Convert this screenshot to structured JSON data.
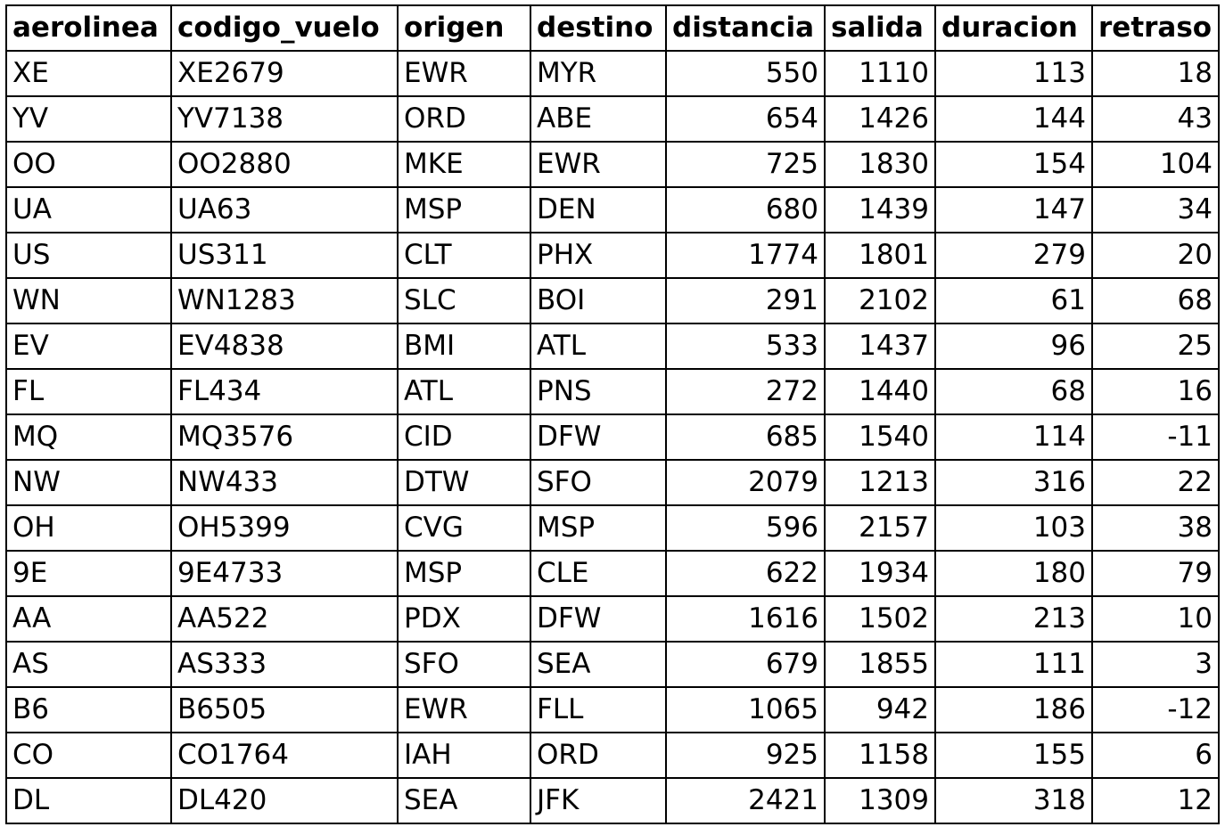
{
  "columns": [
    "aerolinea",
    "codigo_vuelo",
    "origen",
    "destino",
    "distancia",
    "salida",
    "duracion",
    "retraso"
  ],
  "rows": [
    [
      "XE",
      "XE2679",
      "EWR",
      "MYR",
      "550",
      "1110",
      "113",
      "18"
    ],
    [
      "YV",
      "YV7138",
      "ORD",
      "ABE",
      "654",
      "1426",
      "144",
      "43"
    ],
    [
      "OO",
      "OO2880",
      "MKE",
      "EWR",
      "725",
      "1830",
      "154",
      "104"
    ],
    [
      "UA",
      "UA63",
      "MSP",
      "DEN",
      "680",
      "1439",
      "147",
      "34"
    ],
    [
      "US",
      "US311",
      "CLT",
      "PHX",
      "1774",
      "1801",
      "279",
      "20"
    ],
    [
      "WN",
      "WN1283",
      "SLC",
      "BOI",
      "291",
      "2102",
      "61",
      "68"
    ],
    [
      "EV",
      "EV4838",
      "BMI",
      "ATL",
      "533",
      "1437",
      "96",
      "25"
    ],
    [
      "FL",
      "FL434",
      "ATL",
      "PNS",
      "272",
      "1440",
      "68",
      "16"
    ],
    [
      "MQ",
      "MQ3576",
      "CID",
      "DFW",
      "685",
      "1540",
      "114",
      "-11"
    ],
    [
      "NW",
      "NW433",
      "DTW",
      "SFO",
      "2079",
      "1213",
      "316",
      "22"
    ],
    [
      "OH",
      "OH5399",
      "CVG",
      "MSP",
      "596",
      "2157",
      "103",
      "38"
    ],
    [
      "9E",
      "9E4733",
      "MSP",
      "CLE",
      "622",
      "1934",
      "180",
      "79"
    ],
    [
      "AA",
      "AA522",
      "PDX",
      "DFW",
      "1616",
      "1502",
      "213",
      "10"
    ],
    [
      "AS",
      "AS333",
      "SFO",
      "SEA",
      "679",
      "1855",
      "111",
      "3"
    ],
    [
      "B6",
      "B6505",
      "EWR",
      "FLL",
      "1065",
      "942",
      "186",
      "-12"
    ],
    [
      "CO",
      "CO1764",
      "IAH",
      "ORD",
      "925",
      "1158",
      "155",
      "6"
    ],
    [
      "DL",
      "DL420",
      "SEA",
      "JFK",
      "2421",
      "1309",
      "318",
      "12"
    ]
  ]
}
